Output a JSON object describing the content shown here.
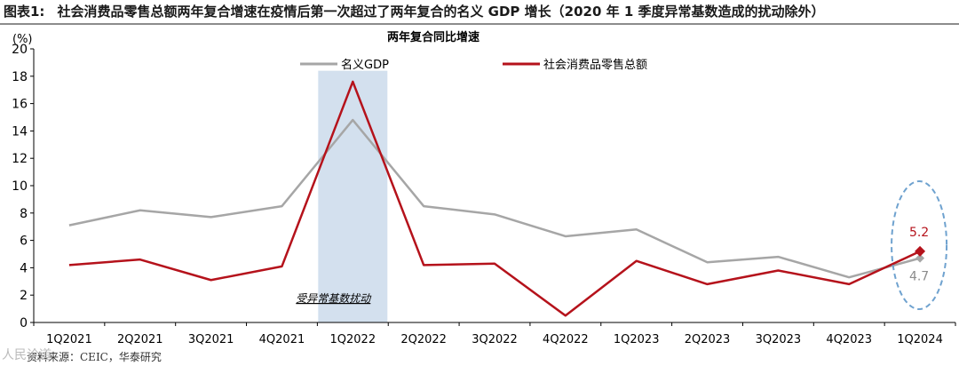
{
  "figure": {
    "number": "图表1:",
    "title": "社会消费品零售总额两年复合增速在疫情后第一次超过了两年复合的名义 GDP 增长（2020 年 1 季度异常基数造成的扰动除外）",
    "source": "资料来源：CEIC，华泰研究",
    "watermark": "人民论道"
  },
  "chart_data": {
    "type": "line",
    "title": "两年复合同比增速",
    "unit_label": "(%)",
    "categories": [
      "1Q2021",
      "2Q2021",
      "3Q2021",
      "4Q2021",
      "1Q2022",
      "2Q2022",
      "3Q2022",
      "4Q2022",
      "1Q2023",
      "2Q2023",
      "3Q2023",
      "4Q2023",
      "1Q2024"
    ],
    "ylim": [
      0,
      20
    ],
    "yticks": [
      0,
      2,
      4,
      6,
      8,
      10,
      12,
      14,
      16,
      18,
      20
    ],
    "grid": false,
    "legend_position": "top-center",
    "series": [
      {
        "name": "名义GDP",
        "color": "#a6a6a6",
        "values": [
          7.1,
          8.2,
          7.7,
          8.5,
          14.8,
          8.5,
          7.9,
          6.3,
          6.8,
          4.4,
          4.8,
          3.3,
          4.7
        ]
      },
      {
        "name": "社会消费品零售总额",
        "color": "#b5121b",
        "values": [
          4.2,
          4.6,
          3.1,
          4.1,
          17.6,
          4.2,
          4.3,
          0.5,
          4.5,
          2.8,
          3.8,
          2.8,
          5.2
        ]
      }
    ],
    "annotations": {
      "shaded_category": "1Q2022",
      "shaded_label": "受异常基数扰动",
      "shaded_color": "#d3e0ee",
      "highlight_category": "1Q2024",
      "highlight_labels": [
        "5.2",
        "4.7"
      ],
      "highlight_color": "#6fa2cf"
    }
  }
}
